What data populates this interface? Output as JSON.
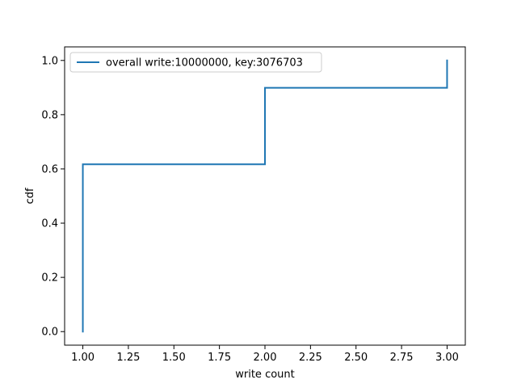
{
  "chart_data": {
    "type": "line",
    "title": "",
    "xlabel": "write count",
    "ylabel": "cdf",
    "xlim": [
      0.9,
      3.1
    ],
    "ylim": [
      -0.05,
      1.05
    ],
    "xticks": [
      1.0,
      1.25,
      1.5,
      1.75,
      2.0,
      2.25,
      2.5,
      2.75,
      3.0
    ],
    "xtick_labels": [
      "1.00",
      "1.25",
      "1.50",
      "1.75",
      "2.00",
      "2.25",
      "2.50",
      "2.75",
      "3.00"
    ],
    "yticks": [
      0.0,
      0.2,
      0.4,
      0.6,
      0.8,
      1.0
    ],
    "ytick_labels": [
      "0.0",
      "0.2",
      "0.4",
      "0.6",
      "0.8",
      "1.0"
    ],
    "grid": false,
    "legend_position": "top-left",
    "series": [
      {
        "name": "overall write:10000000, key:3076703",
        "color": "#1f77b4",
        "x": [
          1.0,
          1.0,
          2.0,
          2.0,
          3.0,
          3.0
        ],
        "y": [
          0.0,
          0.617,
          0.617,
          0.899,
          0.899,
          1.0
        ]
      }
    ]
  }
}
